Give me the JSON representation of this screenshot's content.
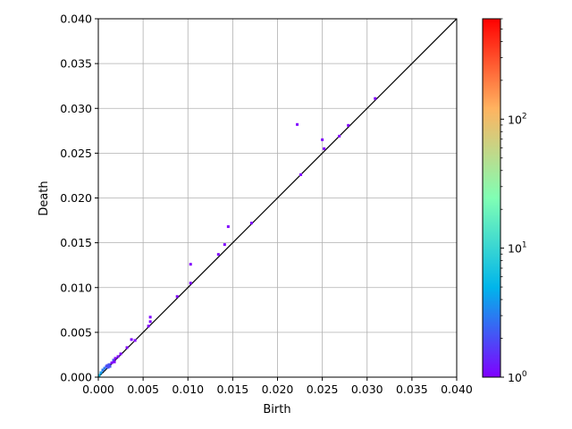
{
  "chart_data": {
    "type": "heatmap",
    "title": "",
    "xlabel": "Birth",
    "ylabel": "Death",
    "xlim": [
      0.0,
      0.04
    ],
    "ylim": [
      0.0,
      0.04
    ],
    "grid": true,
    "diagonal_line": true,
    "x_ticks": [
      "0.000",
      "0.005",
      "0.010",
      "0.015",
      "0.020",
      "0.025",
      "0.030",
      "0.035",
      "0.040"
    ],
    "y_ticks": [
      "0.000",
      "0.005",
      "0.010",
      "0.015",
      "0.020",
      "0.025",
      "0.030",
      "0.035",
      "0.040"
    ],
    "colorbar": {
      "scale": "log",
      "range": [
        1,
        600
      ],
      "colormap": "rainbow",
      "colors": [
        "#8000ff",
        "#00b5eb",
        "#80ffb4",
        "#ffb360",
        "#ff0000"
      ],
      "ticks": [
        {
          "value": 1,
          "base": "10",
          "exp": "0"
        },
        {
          "value": 10,
          "base": "10",
          "exp": "1"
        },
        {
          "value": 100,
          "base": "10",
          "exp": "2"
        }
      ]
    },
    "points": [
      {
        "birth": 0.0001,
        "death": 0.0002,
        "count": 6
      },
      {
        "birth": 0.0003,
        "death": 0.0005,
        "count": 4
      },
      {
        "birth": 0.0005,
        "death": 0.0008,
        "count": 3
      },
      {
        "birth": 0.0007,
        "death": 0.001,
        "count": 3
      },
      {
        "birth": 0.0009,
        "death": 0.0012,
        "count": 2
      },
      {
        "birth": 0.001,
        "death": 0.0013,
        "count": 2
      },
      {
        "birth": 0.0011,
        "death": 0.0011,
        "count": 2
      },
      {
        "birth": 0.0012,
        "death": 0.0014,
        "count": 2
      },
      {
        "birth": 0.0013,
        "death": 0.0012,
        "count": 2
      },
      {
        "birth": 0.0015,
        "death": 0.0016,
        "count": 1
      },
      {
        "birth": 0.0017,
        "death": 0.0019,
        "count": 2
      },
      {
        "birth": 0.0019,
        "death": 0.0021,
        "count": 1
      },
      {
        "birth": 0.0018,
        "death": 0.0017,
        "count": 1
      },
      {
        "birth": 0.0022,
        "death": 0.0023,
        "count": 1
      },
      {
        "birth": 0.0025,
        "death": 0.0026,
        "count": 1
      },
      {
        "birth": 0.0032,
        "death": 0.0033,
        "count": 1
      },
      {
        "birth": 0.0037,
        "death": 0.0042,
        "count": 1
      },
      {
        "birth": 0.0041,
        "death": 0.0041,
        "count": 1
      },
      {
        "birth": 0.0056,
        "death": 0.0057,
        "count": 1
      },
      {
        "birth": 0.0058,
        "death": 0.0062,
        "count": 1
      },
      {
        "birth": 0.0058,
        "death": 0.0067,
        "count": 1
      },
      {
        "birth": 0.0088,
        "death": 0.009,
        "count": 1
      },
      {
        "birth": 0.0103,
        "death": 0.0105,
        "count": 1
      },
      {
        "birth": 0.0103,
        "death": 0.0126,
        "count": 1
      },
      {
        "birth": 0.0134,
        "death": 0.0137,
        "count": 1
      },
      {
        "birth": 0.0141,
        "death": 0.0148,
        "count": 1
      },
      {
        "birth": 0.0145,
        "death": 0.0168,
        "count": 1
      },
      {
        "birth": 0.0171,
        "death": 0.0172,
        "count": 1
      },
      {
        "birth": 0.0222,
        "death": 0.0282,
        "count": 1
      },
      {
        "birth": 0.0226,
        "death": 0.0226,
        "count": 1
      },
      {
        "birth": 0.025,
        "death": 0.0265,
        "count": 1
      },
      {
        "birth": 0.0252,
        "death": 0.0255,
        "count": 1
      },
      {
        "birth": 0.0269,
        "death": 0.0269,
        "count": 1
      },
      {
        "birth": 0.0279,
        "death": 0.0281,
        "count": 1
      },
      {
        "birth": 0.0309,
        "death": 0.0311,
        "count": 1
      }
    ]
  }
}
